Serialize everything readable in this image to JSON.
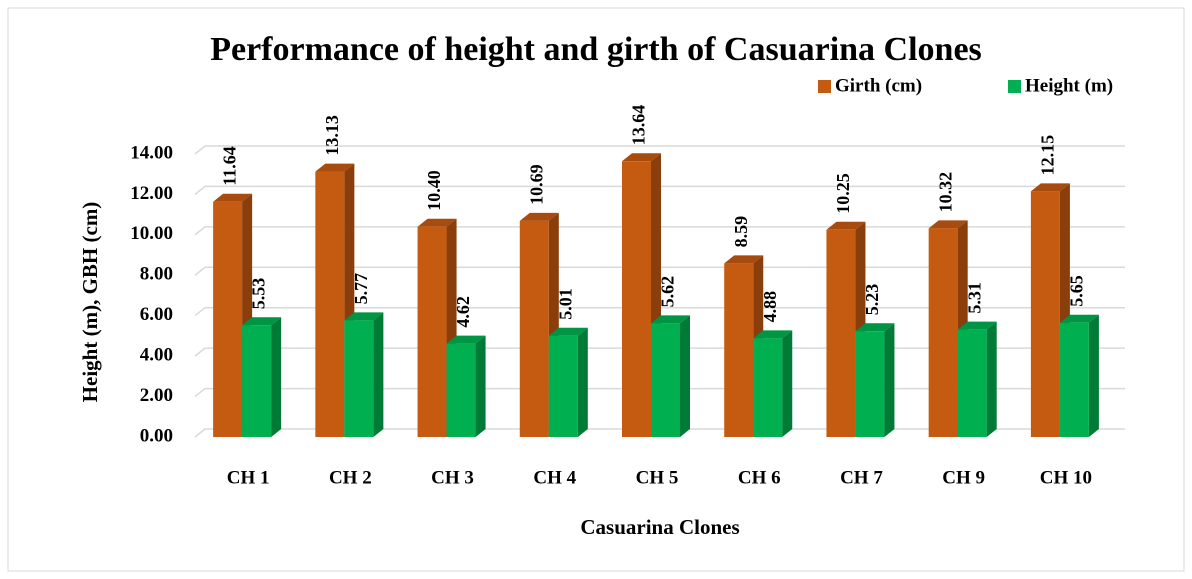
{
  "chart_data": {
    "type": "bar",
    "title": "Performance of height and girth of Casuarina Clones",
    "x_label": "Casuarina Clones",
    "y_label": "Height (m), GBH (cm)",
    "categories": [
      "CH 1",
      "CH 2",
      "CH 3",
      "CH 4",
      "CH 5",
      "CH 6",
      "CH 7",
      "CH 9",
      "CH 10"
    ],
    "series": [
      {
        "name": "Girth (cm)",
        "color": "#c55a11",
        "values": [
          11.64,
          13.13,
          10.4,
          10.69,
          13.64,
          8.59,
          10.25,
          10.32,
          12.15
        ],
        "value_labels": [
          "11.64",
          "13.13",
          "10.40",
          "10.69",
          "13.64",
          "8.59",
          "10.25",
          "10.32",
          "12.15"
        ]
      },
      {
        "name": "Height (m)",
        "color": "#00b050",
        "values": [
          5.53,
          5.77,
          4.62,
          5.01,
          5.62,
          4.88,
          5.23,
          5.31,
          5.65
        ],
        "value_labels": [
          "5.53",
          "5.77",
          "4.62",
          "5.01",
          "5.62",
          "4.88",
          "5.23",
          "5.31",
          "5.65"
        ]
      }
    ],
    "ylim": [
      0,
      14
    ],
    "yticks": [
      {
        "value": 0,
        "label": "0.00"
      },
      {
        "value": 2,
        "label": "2.00"
      },
      {
        "value": 4,
        "label": "4.00"
      },
      {
        "value": 6,
        "label": "6.00"
      },
      {
        "value": 8,
        "label": "8.00"
      },
      {
        "value": 10,
        "label": "10.00"
      },
      {
        "value": 12,
        "label": "12.00"
      },
      {
        "value": 14,
        "label": "14.00"
      }
    ],
    "grid": true,
    "legend": "top-right"
  }
}
